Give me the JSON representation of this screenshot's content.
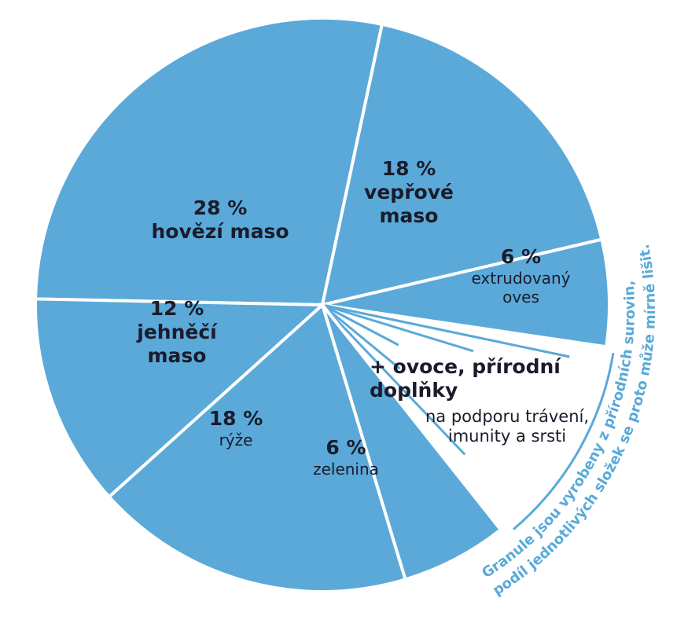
{
  "chart_data": {
    "type": "pie",
    "categories": [
      "hovězí maso",
      "vepřové maso",
      "extrudovaný oves",
      "+ ovoce, přírodní doplňky",
      "zelenina",
      "rýže",
      "jehněčí maso"
    ],
    "values": [
      28,
      18,
      6,
      12,
      6,
      18,
      12
    ],
    "value_labels": [
      "28 %",
      "18 %",
      "6 %",
      null,
      "6 %",
      "18 %",
      "12 %"
    ],
    "colors": [
      "#5aa9d9",
      "#5aa9d9",
      "#5aa9d9",
      "#ffffff",
      "#5aa9d9",
      "#5aa9d9",
      "#5aa9d9"
    ],
    "annotation": "na podporu trávení, imunity a srsti",
    "note": [
      "Granule jsou vyrobeny z přírodních surovin,",
      "podíl jednotlivých složek se proto může mírně lišit."
    ]
  }
}
